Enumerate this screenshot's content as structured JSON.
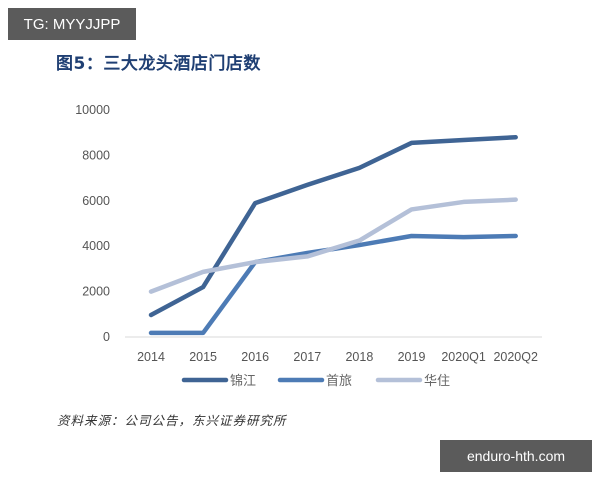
{
  "watermarks": {
    "top": "TG: MYYJJPP",
    "bottom": "enduro-hth.com"
  },
  "title": "图5：三大龙头酒店门店数",
  "source": "资料来源：公司公告，东兴证券研究所",
  "chart_data": {
    "type": "line",
    "title": "图5：三大龙头酒店门店数",
    "xlabel": "",
    "ylabel": "",
    "categories": [
      "2014",
      "2015",
      "2016",
      "2017",
      "2018",
      "2019",
      "2020Q1",
      "2020Q2"
    ],
    "ylim": [
      0,
      10000
    ],
    "yticks": [
      0,
      2000,
      4000,
      6000,
      8000,
      10000
    ],
    "grid": false,
    "legend_position": "bottom",
    "series": [
      {
        "name": "锦江",
        "color": "#3f6494",
        "values": [
          970,
          2200,
          5900,
          6700,
          7450,
          8550,
          8680,
          8800
        ]
      },
      {
        "name": "首旅",
        "color": "#4d7bb5",
        "values": [
          180,
          180,
          3300,
          3700,
          4050,
          4450,
          4400,
          4450
        ]
      },
      {
        "name": "华住",
        "color": "#b4c0d8",
        "values": [
          2000,
          2870,
          3300,
          3550,
          4250,
          5620,
          5950,
          6050
        ]
      }
    ]
  }
}
